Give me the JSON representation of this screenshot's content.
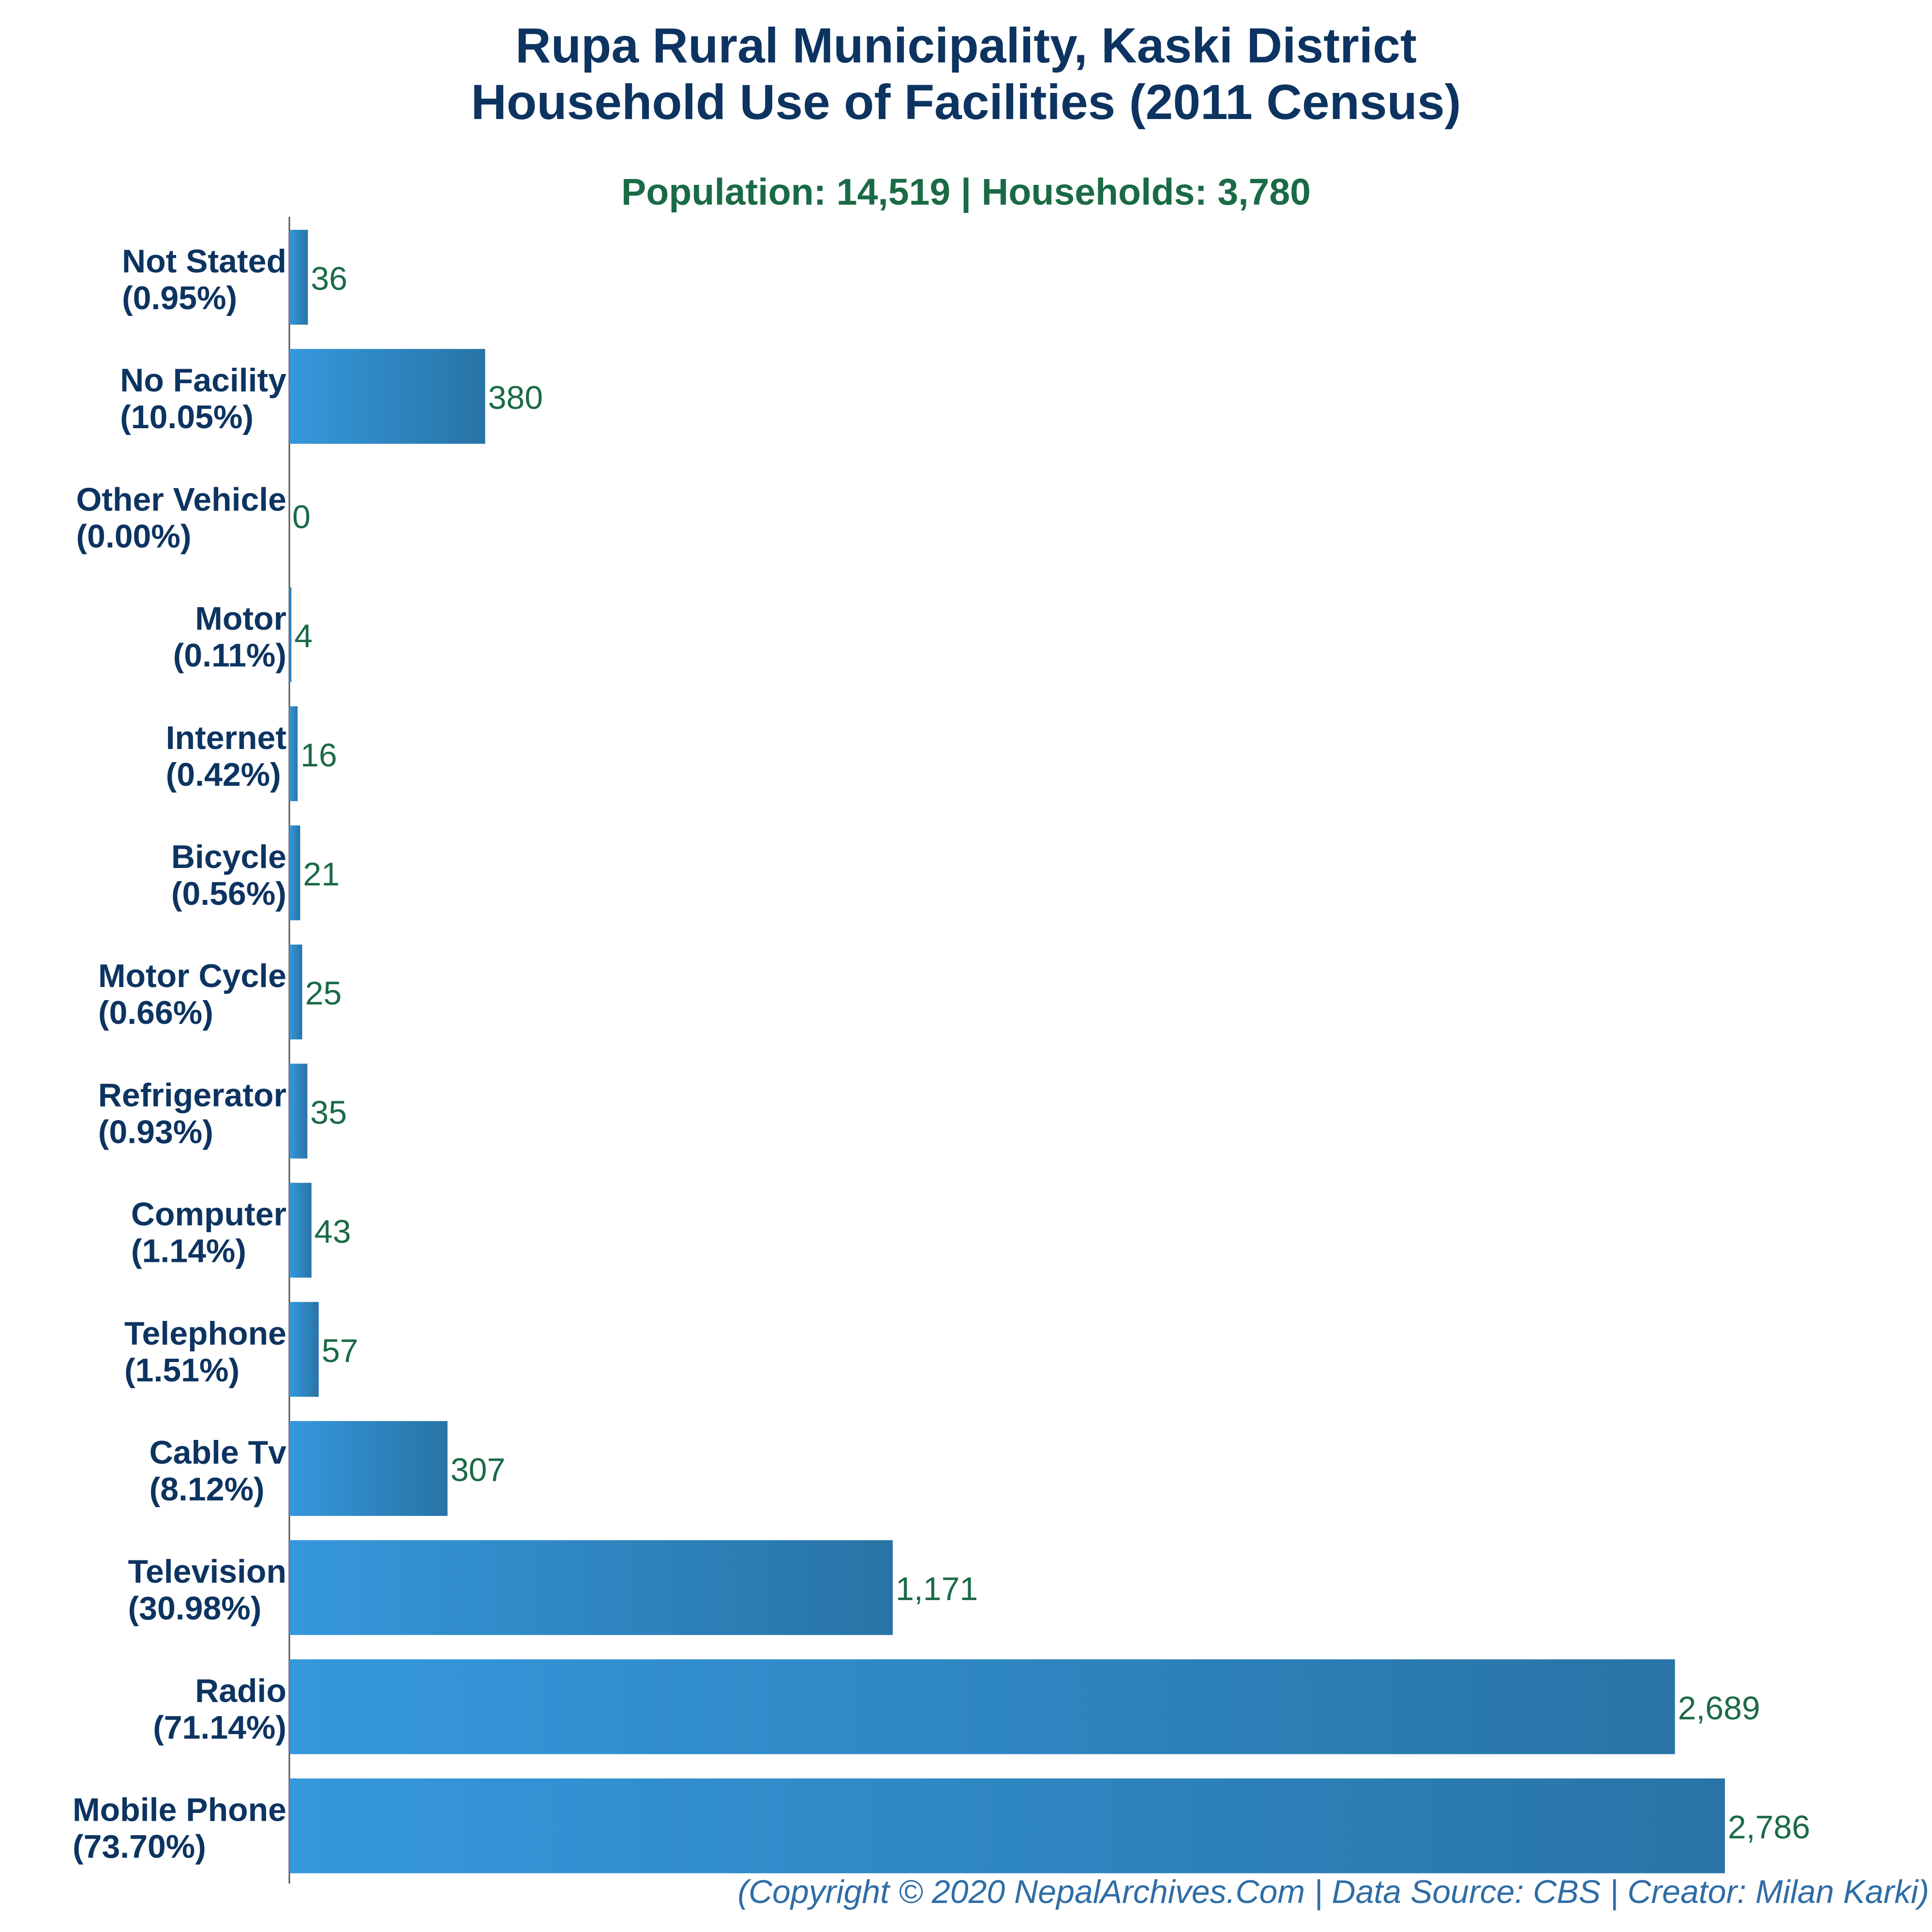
{
  "chart_data": {
    "type": "bar",
    "orientation": "horizontal",
    "title": "Rupa Rural Municipality, Kaski District",
    "title_line2": "Household Use of Facilities (2011 Census)",
    "subtitle": "Population: 14,519 | Households: 3,780",
    "xlabel": "",
    "ylabel": "",
    "xlim": [
      0,
      2786
    ],
    "grid": false,
    "legend": "none",
    "categories": [
      "Not Stated",
      "No Facility",
      "Other Vehicle",
      "Motor",
      "Internet",
      "Bicycle",
      "Motor Cycle",
      "Refrigerator",
      "Computer",
      "Telephone",
      "Cable Tv",
      "Television",
      "Radio",
      "Mobile Phone"
    ],
    "percent_labels": [
      "(0.95%)",
      "(10.05%)",
      "(0.00%)",
      "(0.11%)",
      "(0.42%)",
      "(0.56%)",
      "(0.66%)",
      "(0.93%)",
      "(1.14%)",
      "(1.51%)",
      "(8.12%)",
      "(30.98%)",
      "(71.14%)",
      "(73.70%)"
    ],
    "values": [
      36,
      380,
      0,
      4,
      16,
      21,
      25,
      35,
      43,
      57,
      307,
      1171,
      2689,
      2786
    ],
    "value_labels": [
      "36",
      "380",
      "0",
      "4",
      "16",
      "21",
      "25",
      "35",
      "43",
      "57",
      "307",
      "1,171",
      "2,689",
      "2,786"
    ],
    "colors": {
      "bar_light": "#3598dc",
      "bar_dark": "#2874a6",
      "title": "#0d3461",
      "category_label": "#0d3461",
      "value_label": "#1a6b45",
      "subtitle": "#1a6b45",
      "footer": "#2f6da6",
      "axis": "#555555"
    },
    "footer": "(Copyright © 2020 NepalArchives.Com | Data Source: CBS | Creator: Milan Karki)"
  }
}
